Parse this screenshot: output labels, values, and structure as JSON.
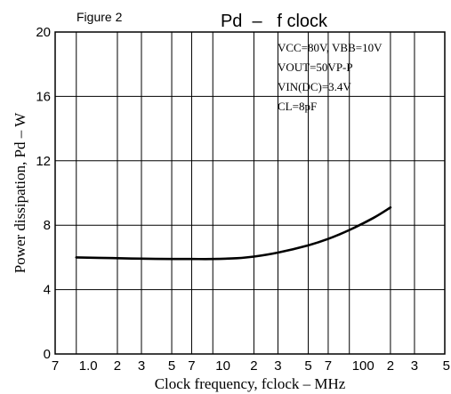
{
  "figure_label": "Figure 2",
  "chart_data": {
    "type": "line",
    "title": "Pd  –   f clock",
    "xlabel": "Clock frequency, fclock – MHz",
    "ylabel": "Power dissipation, Pd – W",
    "xscale": "log",
    "xlim": [
      0.7,
      500
    ],
    "ylim": [
      0,
      20
    ],
    "y_ticks": [
      0,
      4,
      8,
      12,
      16,
      20
    ],
    "y_tick_labels": [
      "0",
      "4",
      "8",
      "12",
      "16",
      "20"
    ],
    "x_ticks": [
      0.7,
      1,
      2,
      3,
      5,
      7,
      10,
      20,
      30,
      50,
      70,
      100,
      200,
      300,
      500
    ],
    "x_tick_labels": [
      "7",
      "1.0",
      "2",
      "3",
      "5",
      "7",
      "10",
      "2",
      "3",
      "5",
      "7",
      "100",
      "2",
      "3",
      "5"
    ],
    "grid": true,
    "conditions": [
      "VCC=80V, VBB=10V",
      "VOUT=50VP-P",
      "VIN(DC)=3.4V",
      "CL=8pF"
    ],
    "series": [
      {
        "x": [
          1,
          2,
          3,
          5,
          7,
          10,
          15,
          20,
          30,
          50,
          70,
          100,
          150,
          200
        ],
        "y": [
          6.0,
          5.95,
          5.92,
          5.9,
          5.9,
          5.9,
          5.95,
          6.05,
          6.3,
          6.75,
          7.15,
          7.7,
          8.45,
          9.1
        ]
      }
    ]
  }
}
